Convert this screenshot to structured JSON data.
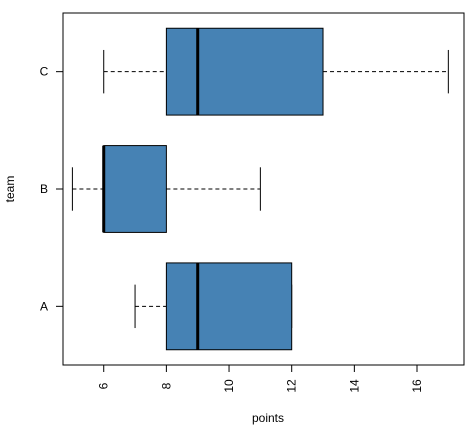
{
  "chart_data": {
    "type": "boxplot",
    "orientation": "horizontal",
    "title": "",
    "xlabel": "points",
    "ylabel": "team",
    "xlim": [
      4.7,
      17.5
    ],
    "x_ticks": [
      "6",
      "8",
      "10",
      "12",
      "14",
      "16"
    ],
    "x_tick_values": [
      6,
      8,
      10,
      12,
      14,
      16
    ],
    "categories": [
      "A",
      "B",
      "C"
    ],
    "boxes": [
      {
        "category": "A",
        "whisker_low": 7,
        "q1": 8,
        "median": 9,
        "q3": 12,
        "whisker_high": 12
      },
      {
        "category": "B",
        "whisker_low": 5,
        "q1": 6,
        "median": 6,
        "q3": 8,
        "whisker_high": 11
      },
      {
        "category": "C",
        "whisker_low": 6,
        "q1": 8,
        "median": 9,
        "q3": 13,
        "whisker_high": 17
      }
    ],
    "box_color": "#4682b4",
    "grid": false,
    "legend": "none"
  }
}
